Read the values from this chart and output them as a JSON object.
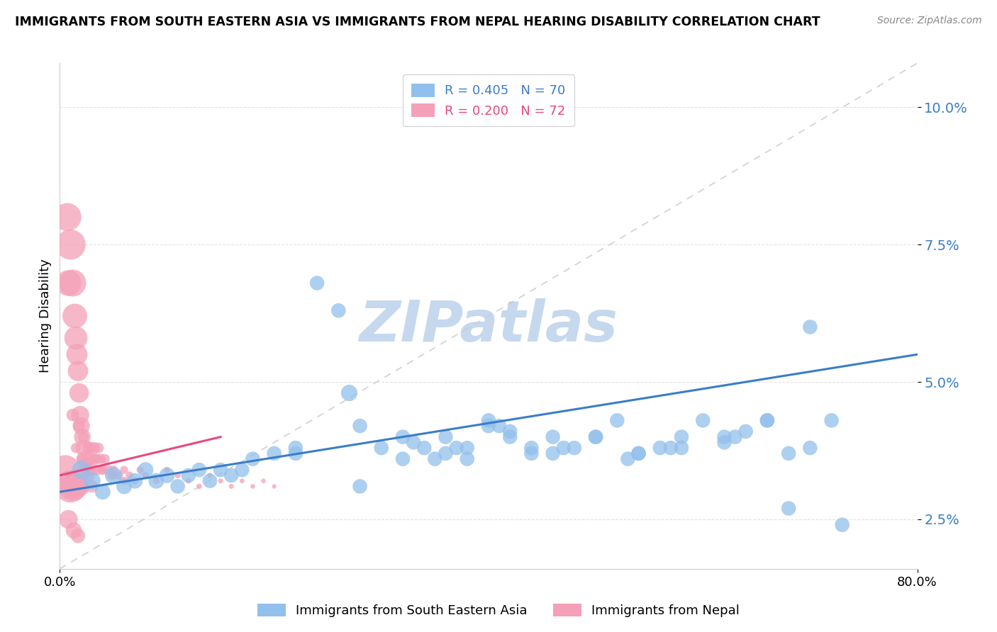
{
  "title": "IMMIGRANTS FROM SOUTH EASTERN ASIA VS IMMIGRANTS FROM NEPAL HEARING DISABILITY CORRELATION CHART",
  "source": "Source: ZipAtlas.com",
  "ylabel": "Hearing Disability",
  "series1_label": "Immigrants from South Eastern Asia",
  "series2_label": "Immigrants from Nepal",
  "series1_R": 0.405,
  "series1_N": 70,
  "series2_R": 0.2,
  "series2_N": 72,
  "series1_color": "#92C0EC",
  "series2_color": "#F4A0B8",
  "trend1_color": "#3A7DC9",
  "trend2_color": "#E84880",
  "watermark": "ZIPatlas",
  "watermark_color": "#C5D8EE",
  "xlim": [
    0.0,
    0.8
  ],
  "ylim": [
    0.016,
    0.108
  ],
  "yticks": [
    0.025,
    0.05,
    0.075,
    0.1
  ],
  "ytick_labels": [
    "2.5%",
    "5.0%",
    "7.5%",
    "10.0%"
  ],
  "diag_color": "#CCCCCC",
  "grid_color": "#DDDDDD",
  "series1_x": [
    0.02,
    0.03,
    0.04,
    0.05,
    0.06,
    0.07,
    0.08,
    0.09,
    0.1,
    0.11,
    0.12,
    0.13,
    0.14,
    0.15,
    0.16,
    0.17,
    0.18,
    0.2,
    0.22,
    0.24,
    0.26,
    0.28,
    0.3,
    0.32,
    0.34,
    0.36,
    0.38,
    0.4,
    0.42,
    0.44,
    0.46,
    0.48,
    0.5,
    0.52,
    0.54,
    0.56,
    0.58,
    0.6,
    0.62,
    0.64,
    0.66,
    0.68,
    0.7,
    0.72,
    0.27,
    0.32,
    0.36,
    0.4,
    0.44,
    0.35,
    0.38,
    0.42,
    0.46,
    0.5,
    0.54,
    0.58,
    0.62,
    0.66,
    0.7,
    0.22,
    0.28,
    0.33,
    0.37,
    0.41,
    0.47,
    0.53,
    0.57,
    0.63,
    0.68,
    0.73
  ],
  "series1_y": [
    0.034,
    0.032,
    0.03,
    0.033,
    0.031,
    0.032,
    0.034,
    0.032,
    0.033,
    0.031,
    0.033,
    0.034,
    0.032,
    0.034,
    0.033,
    0.034,
    0.036,
    0.037,
    0.038,
    0.068,
    0.063,
    0.042,
    0.038,
    0.036,
    0.038,
    0.04,
    0.036,
    0.043,
    0.04,
    0.037,
    0.04,
    0.038,
    0.04,
    0.043,
    0.037,
    0.038,
    0.04,
    0.043,
    0.039,
    0.041,
    0.043,
    0.037,
    0.038,
    0.043,
    0.048,
    0.04,
    0.037,
    0.042,
    0.038,
    0.036,
    0.038,
    0.041,
    0.037,
    0.04,
    0.037,
    0.038,
    0.04,
    0.043,
    0.06,
    0.037,
    0.031,
    0.039,
    0.038,
    0.042,
    0.038,
    0.036,
    0.038,
    0.04,
    0.027,
    0.024
  ],
  "series1_sizes": [
    35,
    30,
    25,
    30,
    25,
    25,
    25,
    25,
    25,
    22,
    22,
    22,
    22,
    22,
    22,
    22,
    22,
    22,
    22,
    22,
    22,
    22,
    22,
    22,
    22,
    22,
    22,
    22,
    22,
    22,
    22,
    22,
    22,
    22,
    22,
    22,
    22,
    22,
    22,
    22,
    22,
    22,
    22,
    22,
    28,
    22,
    22,
    22,
    22,
    22,
    22,
    22,
    22,
    22,
    22,
    22,
    22,
    22,
    22,
    22,
    22,
    22,
    22,
    22,
    22,
    22,
    22,
    22,
    22,
    22
  ],
  "series2_x": [
    0.005,
    0.007,
    0.008,
    0.01,
    0.01,
    0.012,
    0.012,
    0.013,
    0.014,
    0.015,
    0.015,
    0.016,
    0.017,
    0.018,
    0.018,
    0.019,
    0.02,
    0.02,
    0.021,
    0.022,
    0.023,
    0.024,
    0.025,
    0.026,
    0.027,
    0.028,
    0.03,
    0.03,
    0.032,
    0.033,
    0.035,
    0.036,
    0.038,
    0.04,
    0.042,
    0.045,
    0.048,
    0.05,
    0.055,
    0.06,
    0.065,
    0.07,
    0.075,
    0.08,
    0.09,
    0.1,
    0.11,
    0.12,
    0.13,
    0.14,
    0.15,
    0.16,
    0.17,
    0.18,
    0.19,
    0.2,
    0.015,
    0.02,
    0.025,
    0.03,
    0.035,
    0.012,
    0.018,
    0.022,
    0.028,
    0.032,
    0.04,
    0.05,
    0.06,
    0.008,
    0.013,
    0.017
  ],
  "series2_y": [
    0.034,
    0.08,
    0.068,
    0.031,
    0.075,
    0.031,
    0.068,
    0.031,
    0.062,
    0.058,
    0.031,
    0.055,
    0.052,
    0.048,
    0.031,
    0.044,
    0.031,
    0.042,
    0.04,
    0.038,
    0.036,
    0.035,
    0.034,
    0.033,
    0.038,
    0.036,
    0.031,
    0.034,
    0.038,
    0.036,
    0.034,
    0.038,
    0.036,
    0.034,
    0.036,
    0.034,
    0.033,
    0.034,
    0.033,
    0.034,
    0.033,
    0.032,
    0.034,
    0.033,
    0.032,
    0.034,
    0.033,
    0.032,
    0.031,
    0.033,
    0.032,
    0.031,
    0.032,
    0.031,
    0.032,
    0.031,
    0.038,
    0.036,
    0.034,
    0.038,
    0.036,
    0.044,
    0.042,
    0.04,
    0.038,
    0.036,
    0.034,
    0.033,
    0.032,
    0.025,
    0.023,
    0.022
  ],
  "series2_sizes": [
    500,
    450,
    380,
    600,
    520,
    480,
    420,
    380,
    350,
    310,
    280,
    260,
    240,
    220,
    200,
    190,
    180,
    170,
    160,
    150,
    140,
    130,
    120,
    110,
    100,
    95,
    90,
    85,
    80,
    75,
    70,
    65,
    62,
    58,
    55,
    50,
    48,
    45,
    42,
    38,
    35,
    32,
    30,
    28,
    25,
    22,
    20,
    18,
    17,
    16,
    15,
    14,
    13,
    12,
    12,
    11,
    60,
    55,
    50,
    45,
    42,
    90,
    80,
    70,
    65,
    55,
    48,
    42,
    38,
    200,
    150,
    120
  ]
}
